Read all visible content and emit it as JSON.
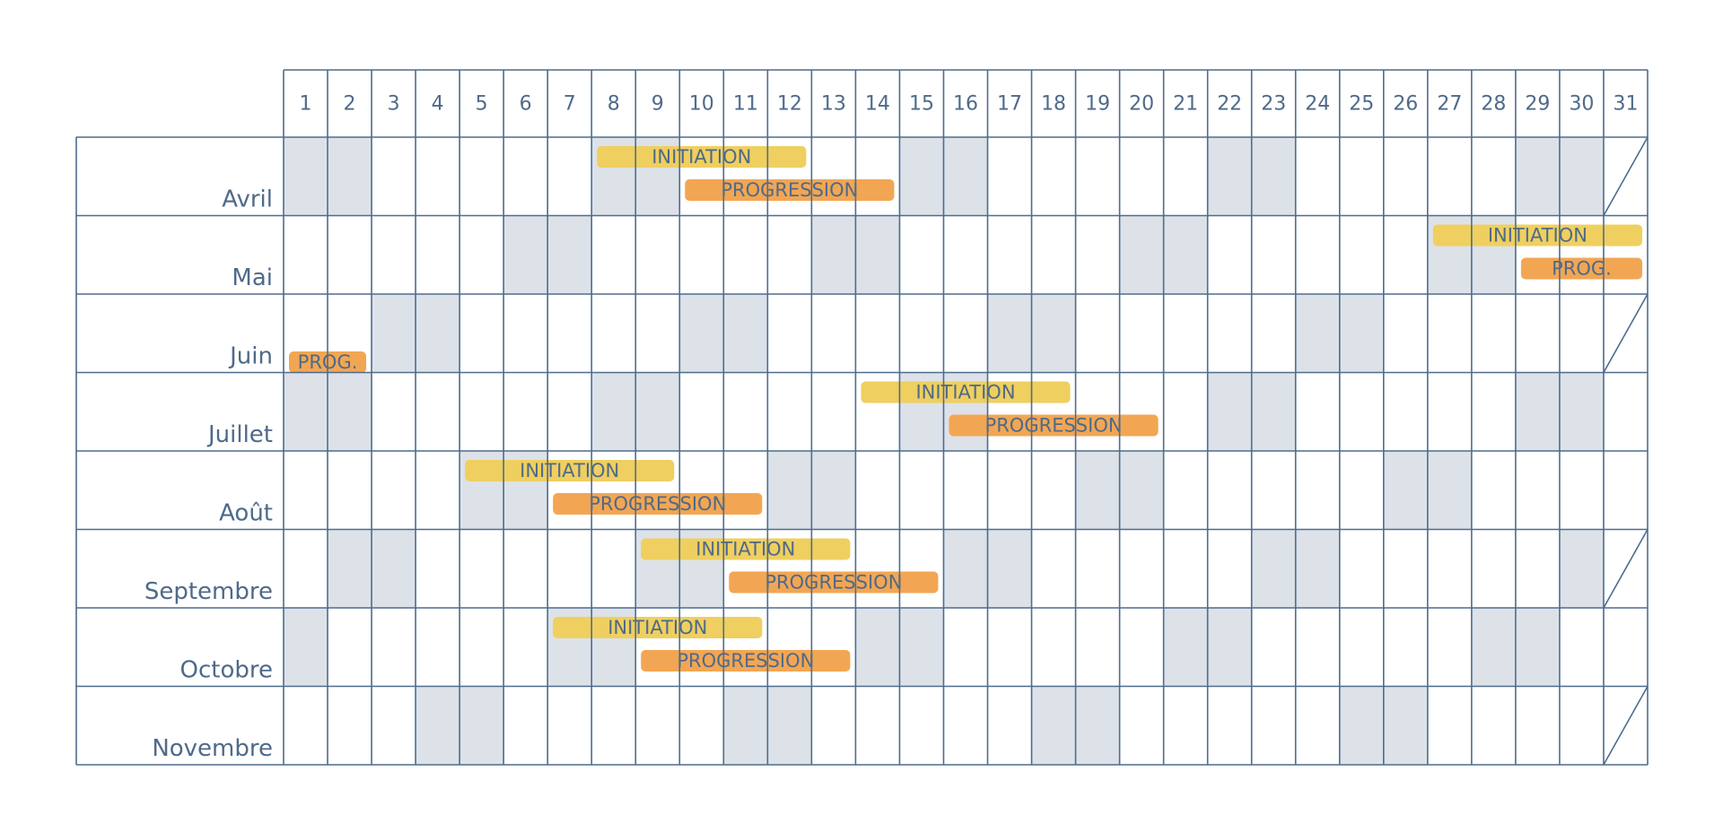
{
  "days": [
    "1",
    "2",
    "3",
    "4",
    "5",
    "6",
    "7",
    "8",
    "9",
    "10",
    "11",
    "12",
    "13",
    "14",
    "15",
    "16",
    "17",
    "18",
    "19",
    "20",
    "21",
    "22",
    "23",
    "24",
    "25",
    "26",
    "27",
    "28",
    "29",
    "30",
    "31"
  ],
  "months": [
    {
      "key": "avril",
      "label": "Avril",
      "weekend_days": [
        1,
        2,
        8,
        9,
        15,
        16,
        22,
        23,
        29,
        30
      ],
      "has_31": false,
      "events": [
        {
          "label": "INITIATION",
          "type": "initiation",
          "start": 8,
          "end": 12,
          "lane": 0
        },
        {
          "label": "PROGRESSION",
          "type": "progression",
          "start": 10,
          "end": 14,
          "lane": 1
        }
      ]
    },
    {
      "key": "mai",
      "label": "Mai",
      "weekend_days": [
        6,
        7,
        13,
        14,
        20,
        21,
        27,
        28
      ],
      "has_31": true,
      "events": [
        {
          "label": "INITIATION",
          "type": "initiation",
          "start": 27,
          "end": 31,
          "lane": 0
        },
        {
          "label": "PROG.",
          "type": "progression",
          "start": 29,
          "end": 31,
          "lane": 1
        }
      ]
    },
    {
      "key": "juin",
      "label": "Juin",
      "weekend_days": [
        3,
        4,
        10,
        11,
        17,
        18,
        24,
        25
      ],
      "has_31": false,
      "events": [
        {
          "label": "PROG.",
          "type": "progression",
          "start": 1,
          "end": 2,
          "lane": 2
        }
      ]
    },
    {
      "key": "juillet",
      "label": "Juillet",
      "weekend_days": [
        1,
        2,
        8,
        9,
        15,
        16,
        22,
        23,
        29,
        30
      ],
      "has_31": true,
      "events": [
        {
          "label": "INITIATION",
          "type": "initiation",
          "start": 14,
          "end": 18,
          "lane": 0
        },
        {
          "label": "PROGRESSION",
          "type": "progression",
          "start": 16,
          "end": 20,
          "lane": 1
        }
      ]
    },
    {
      "key": "aout",
      "label": "Août",
      "weekend_days": [
        5,
        6,
        12,
        13,
        19,
        20,
        26,
        27
      ],
      "has_31": true,
      "events": [
        {
          "label": "INITIATION",
          "type": "initiation",
          "start": 5,
          "end": 9,
          "lane": 0
        },
        {
          "label": "PROGRESSION",
          "type": "progression",
          "start": 7,
          "end": 11,
          "lane": 1
        }
      ]
    },
    {
      "key": "septembre",
      "label": "Septembre",
      "weekend_days": [
        2,
        3,
        9,
        10,
        16,
        17,
        23,
        24,
        30
      ],
      "has_31": false,
      "events": [
        {
          "label": "INITIATION",
          "type": "initiation",
          "start": 9,
          "end": 13,
          "lane": 0
        },
        {
          "label": "PROGRESSION",
          "type": "progression",
          "start": 11,
          "end": 15,
          "lane": 1
        }
      ]
    },
    {
      "key": "octobre",
      "label": "Octobre",
      "weekend_days": [
        1,
        7,
        8,
        14,
        15,
        21,
        22,
        28,
        29
      ],
      "has_31": true,
      "events": [
        {
          "label": "INITIATION",
          "type": "initiation",
          "start": 7,
          "end": 11,
          "lane": 0
        },
        {
          "label": "PROGRESSION",
          "type": "progression",
          "start": 9,
          "end": 13,
          "lane": 1
        }
      ]
    },
    {
      "key": "novembre",
      "label": "Novembre",
      "weekend_days": [
        4,
        5,
        11,
        12,
        18,
        19,
        25,
        26
      ],
      "has_31": false,
      "events": []
    }
  ],
  "colors": {
    "grid": "#4d6c8e",
    "weekend": "#dde2e8",
    "initiation": "#efcf5f",
    "progression": "#f2a653",
    "text": "#4f6a89"
  }
}
